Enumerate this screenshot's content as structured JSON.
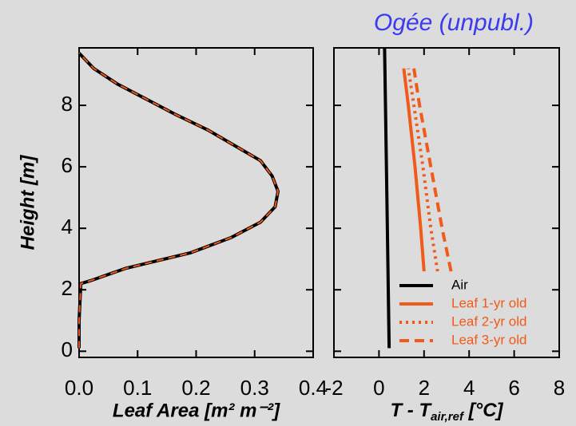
{
  "chart_data": [
    {
      "type": "line",
      "ylabel": "Height [m]",
      "xlabel": "Leaf Area [m² m⁻²]",
      "xlim": [
        0,
        0.4
      ],
      "xticks": [
        {
          "value": 0,
          "label": "0.0"
        },
        0.1,
        0.2,
        0.3,
        0.4
      ],
      "ylim": [
        -0.2,
        9.87
      ],
      "yticks": [
        0,
        2,
        4,
        6,
        8
      ],
      "series": [
        {
          "color": "#000000",
          "overlay_color": "#f05a1a",
          "y": [
            0.1,
            1.0,
            2.2,
            2.3,
            2.7,
            3.2,
            3.7,
            4.2,
            4.7,
            5.2,
            5.7,
            6.2,
            6.7,
            7.2,
            7.7,
            8.2,
            8.7,
            9.2,
            9.7
          ],
          "values": [
            0,
            0,
            0.003,
            0.02,
            0.08,
            0.19,
            0.26,
            0.31,
            0.335,
            0.34,
            0.33,
            0.31,
            0.265,
            0.22,
            0.165,
            0.115,
            0.065,
            0.025,
            0
          ]
        }
      ]
    },
    {
      "type": "line",
      "title": "Ogée (unpubl.)",
      "xlabel_parts": [
        "T - T",
        "air,ref",
        " [°C]"
      ],
      "xlim": [
        -2,
        8
      ],
      "xticks": [
        -2,
        0,
        2,
        4,
        6,
        8
      ],
      "ylim": [
        -0.2,
        9.87
      ],
      "yticks": [
        0,
        2,
        4,
        6,
        8
      ],
      "series": [
        {
          "name": "Air",
          "color": "#000000",
          "dash": "solid",
          "y": [
            0.1,
            5,
            9.87
          ],
          "values": [
            0.45,
            0.35,
            0.25
          ]
        },
        {
          "name": "Leaf 1-yr old",
          "color": "#f05a1a",
          "dash": "solid",
          "y": [
            2.6,
            4,
            6,
            8,
            9.2
          ],
          "values": [
            2.0,
            1.85,
            1.6,
            1.3,
            1.1
          ]
        },
        {
          "name": "Leaf 2-yr old",
          "color": "#f05a1a",
          "dash": "dotted",
          "y": [
            2.6,
            4,
            6,
            8,
            9.2
          ],
          "values": [
            2.6,
            2.3,
            1.95,
            1.55,
            1.3
          ]
        },
        {
          "name": "Leaf 3-yr old",
          "color": "#f05a1a",
          "dash": "dashed",
          "y": [
            2.6,
            4,
            6,
            8,
            9.2
          ],
          "values": [
            3.2,
            2.8,
            2.3,
            1.8,
            1.55
          ]
        }
      ]
    }
  ]
}
